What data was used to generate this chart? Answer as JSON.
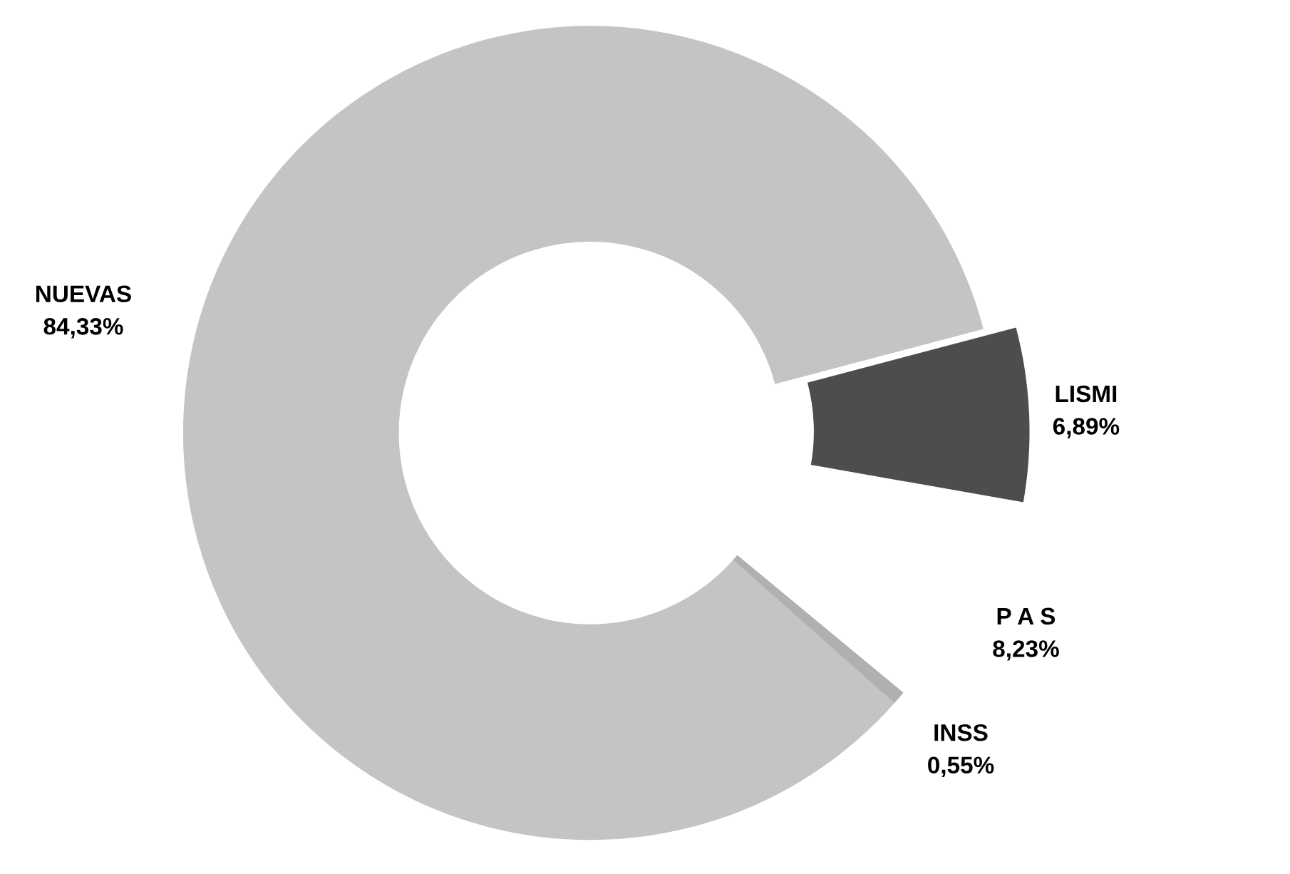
{
  "chart_data": {
    "type": "donut",
    "categories": [
      "LISMI",
      "NUEVAS",
      "INSS",
      "P A S"
    ],
    "values": [
      6.89,
      84.33,
      0.55,
      8.23
    ],
    "value_labels": [
      "6,89%",
      "84,33%",
      "0,55%",
      "8,23%"
    ],
    "colors": [
      "#4d4d4d",
      "#c4c4c4",
      "#b0b0b0",
      "#ffffff"
    ],
    "legend": false
  }
}
